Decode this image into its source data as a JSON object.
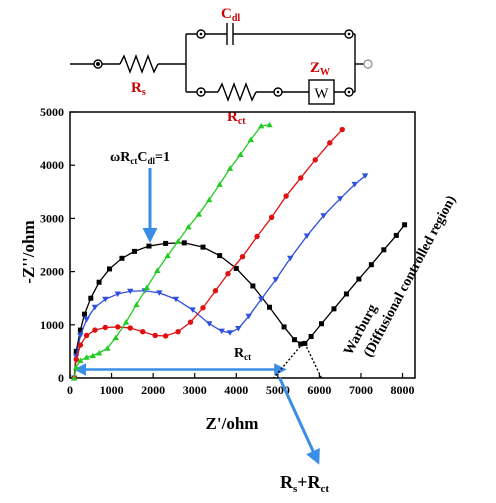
{
  "circuit": {
    "labels": {
      "cdl": "C",
      "cdl_sub": "dl",
      "rs": "R",
      "rs_sub": "s",
      "rct": "R",
      "rct_sub": "ct",
      "zw": "Z",
      "zw_sub": "W",
      "w_box": "W"
    },
    "colors": {
      "label": "#cc0000",
      "wire": "#000000"
    }
  },
  "annotations": {
    "omega": {
      "a": "ωR",
      "b": "ct",
      "c": "C",
      "d": "dl",
      "e": "=1"
    },
    "rct_marker": {
      "a": "R",
      "b": "ct"
    },
    "warburg_line1": "Warburg",
    "warburg_line2": "(Diffusional controlled region)",
    "rs_rct": {
      "a": "R",
      "b": "s",
      "c": "+R",
      "d": "ct"
    },
    "arrow_color": "#3a8ee6"
  },
  "chart_data": {
    "type": "scatter",
    "title": "",
    "xlabel": "Z'/ohm",
    "ylabel": "-Z''/ohm",
    "xlim": [
      0,
      8300
    ],
    "ylim": [
      0,
      5000
    ],
    "xticks": [
      0,
      1000,
      2000,
      3000,
      4000,
      5000,
      6000,
      7000,
      8000
    ],
    "yticks": [
      0,
      1000,
      2000,
      3000,
      4000,
      5000
    ],
    "series": [
      {
        "color": "#000000",
        "marker": "square",
        "x": [
          100,
          150,
          250,
          350,
          500,
          700,
          950,
          1250,
          1550,
          1900,
          2300,
          2750,
          3200,
          3600,
          4000,
          4400,
          4800,
          5150,
          5400,
          5550,
          5650,
          5800,
          6050,
          6350,
          6650,
          6950,
          7250,
          7550,
          7850,
          8050
        ],
        "y": [
          0,
          500,
          900,
          1200,
          1500,
          1800,
          2050,
          2250,
          2380,
          2480,
          2530,
          2540,
          2460,
          2300,
          2060,
          1730,
          1330,
          960,
          720,
          640,
          650,
          780,
          1020,
          1300,
          1580,
          1860,
          2130,
          2410,
          2680,
          2880
        ]
      },
      {
        "color": "#2f4fe0",
        "marker": "triangle-down",
        "x": [
          100,
          150,
          250,
          400,
          600,
          850,
          1150,
          1450,
          1800,
          2150,
          2550,
          2950,
          3350,
          3650,
          3850,
          4050,
          4300,
          4600,
          4950,
          5300,
          5700,
          6100,
          6500,
          6850,
          7100
        ],
        "y": [
          0,
          400,
          800,
          1100,
          1330,
          1480,
          1580,
          1630,
          1640,
          1600,
          1480,
          1280,
          1020,
          880,
          850,
          930,
          1160,
          1480,
          1850,
          2250,
          2670,
          3050,
          3370,
          3640,
          3800
        ]
      },
      {
        "color": "#e01010",
        "marker": "circle",
        "x": [
          100,
          150,
          250,
          400,
          600,
          850,
          1150,
          1450,
          1750,
          2050,
          2300,
          2600,
          2900,
          3200,
          3500,
          3800,
          4150,
          4500,
          4850,
          5200,
          5550,
          5900,
          6250,
          6550
        ],
        "y": [
          0,
          350,
          620,
          800,
          900,
          950,
          960,
          940,
          870,
          800,
          790,
          870,
          1050,
          1320,
          1640,
          1960,
          2280,
          2660,
          3020,
          3420,
          3760,
          4100,
          4420,
          4670
        ]
      },
      {
        "color": "#22cc22",
        "marker": "triangle-up",
        "x": [
          100,
          150,
          250,
          400,
          550,
          700,
          900,
          1100,
          1350,
          1600,
          1850,
          2100,
          2350,
          2600,
          2850,
          3100,
          3350,
          3600,
          3850,
          4100,
          4350,
          4600,
          4800
        ],
        "y": [
          0,
          200,
          330,
          390,
          420,
          470,
          560,
          760,
          1050,
          1380,
          1700,
          2020,
          2300,
          2570,
          2840,
          3080,
          3350,
          3640,
          3940,
          4200,
          4480,
          4740,
          4760
        ]
      }
    ],
    "guides": {
      "rct_arrow": {
        "from": [
          50,
          160
        ],
        "to": [
          5250,
          160
        ]
      },
      "extrapolation": {
        "from": [
          5600,
          650
        ],
        "to": [
          4900,
          0
        ]
      },
      "dotted": {
        "from": [
          5650,
          650
        ],
        "to": [
          6050,
          0
        ]
      }
    }
  }
}
